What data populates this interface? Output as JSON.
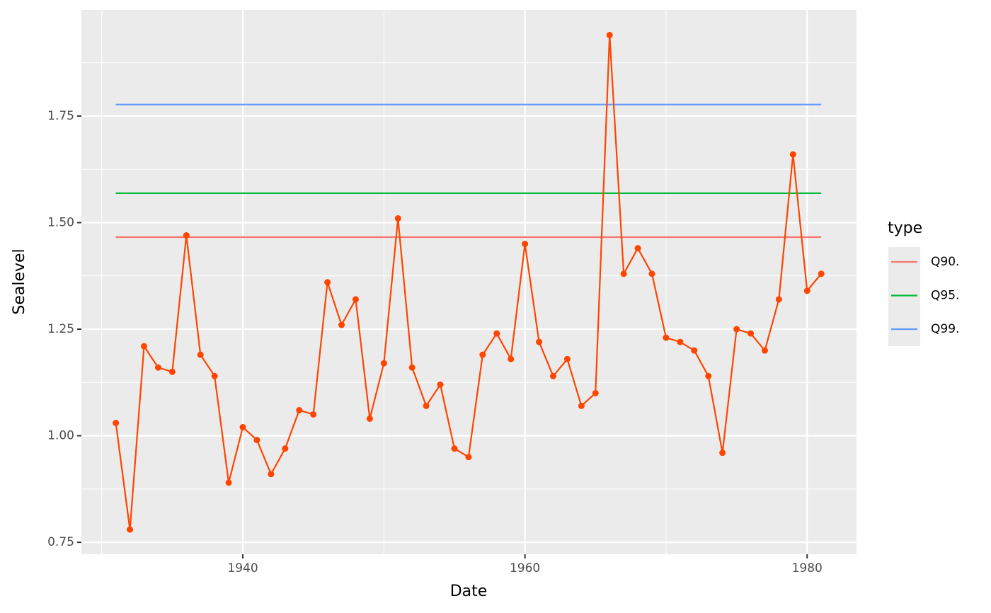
{
  "chart_data": {
    "type": "line",
    "x_label": "Date",
    "y_label": "Sealevel",
    "legend_title": "type",
    "x": [
      1931,
      1932,
      1933,
      1934,
      1935,
      1936,
      1937,
      1938,
      1939,
      1940,
      1941,
      1942,
      1943,
      1944,
      1945,
      1946,
      1947,
      1948,
      1949,
      1950,
      1951,
      1952,
      1953,
      1954,
      1955,
      1956,
      1957,
      1958,
      1959,
      1960,
      1961,
      1962,
      1963,
      1964,
      1965,
      1966,
      1967,
      1968,
      1969,
      1970,
      1971,
      1972,
      1973,
      1974,
      1975,
      1976,
      1977,
      1978,
      1979,
      1980,
      1981
    ],
    "series": [
      {
        "color": "#ff4500",
        "values": [
          1.03,
          0.78,
          1.21,
          1.16,
          1.15,
          1.47,
          1.19,
          1.14,
          0.89,
          1.02,
          0.99,
          0.91,
          0.97,
          1.06,
          1.05,
          1.36,
          1.26,
          1.32,
          1.04,
          1.17,
          1.51,
          1.16,
          1.07,
          1.12,
          0.97,
          0.95,
          1.19,
          1.24,
          1.18,
          1.45,
          1.22,
          1.14,
          1.18,
          1.07,
          1.1,
          1.94,
          1.38,
          1.44,
          1.38,
          1.23,
          1.22,
          1.2,
          1.14,
          0.96,
          1.25,
          1.24,
          1.2,
          1.32,
          1.66,
          1.34,
          1.38
        ]
      }
    ],
    "hlines": [
      {
        "name": "Q90.",
        "color": "#f8766d",
        "value": 1.466
      },
      {
        "name": "Q95.",
        "color": "#00ba38",
        "value": 1.569
      },
      {
        "name": "Q99.",
        "color": "#619cff",
        "value": 1.777
      }
    ],
    "xlim": [
      1928.56,
      1983.5
    ],
    "ylim": [
      0.722,
      1.999
    ],
    "xticks": [
      1940,
      1960,
      1980
    ],
    "yticks": [
      0.75,
      {
        "value": 1,
        "label": "1.00"
      },
      1.25,
      {
        "value": 1.5,
        "label": "1.50"
      },
      1.75
    ],
    "x_minor_ticks": [
      1930,
      1950,
      1970
    ],
    "y_minor_ticks": [
      0.875,
      1.125,
      1.375,
      1.625,
      1.875
    ],
    "grid": true
  }
}
